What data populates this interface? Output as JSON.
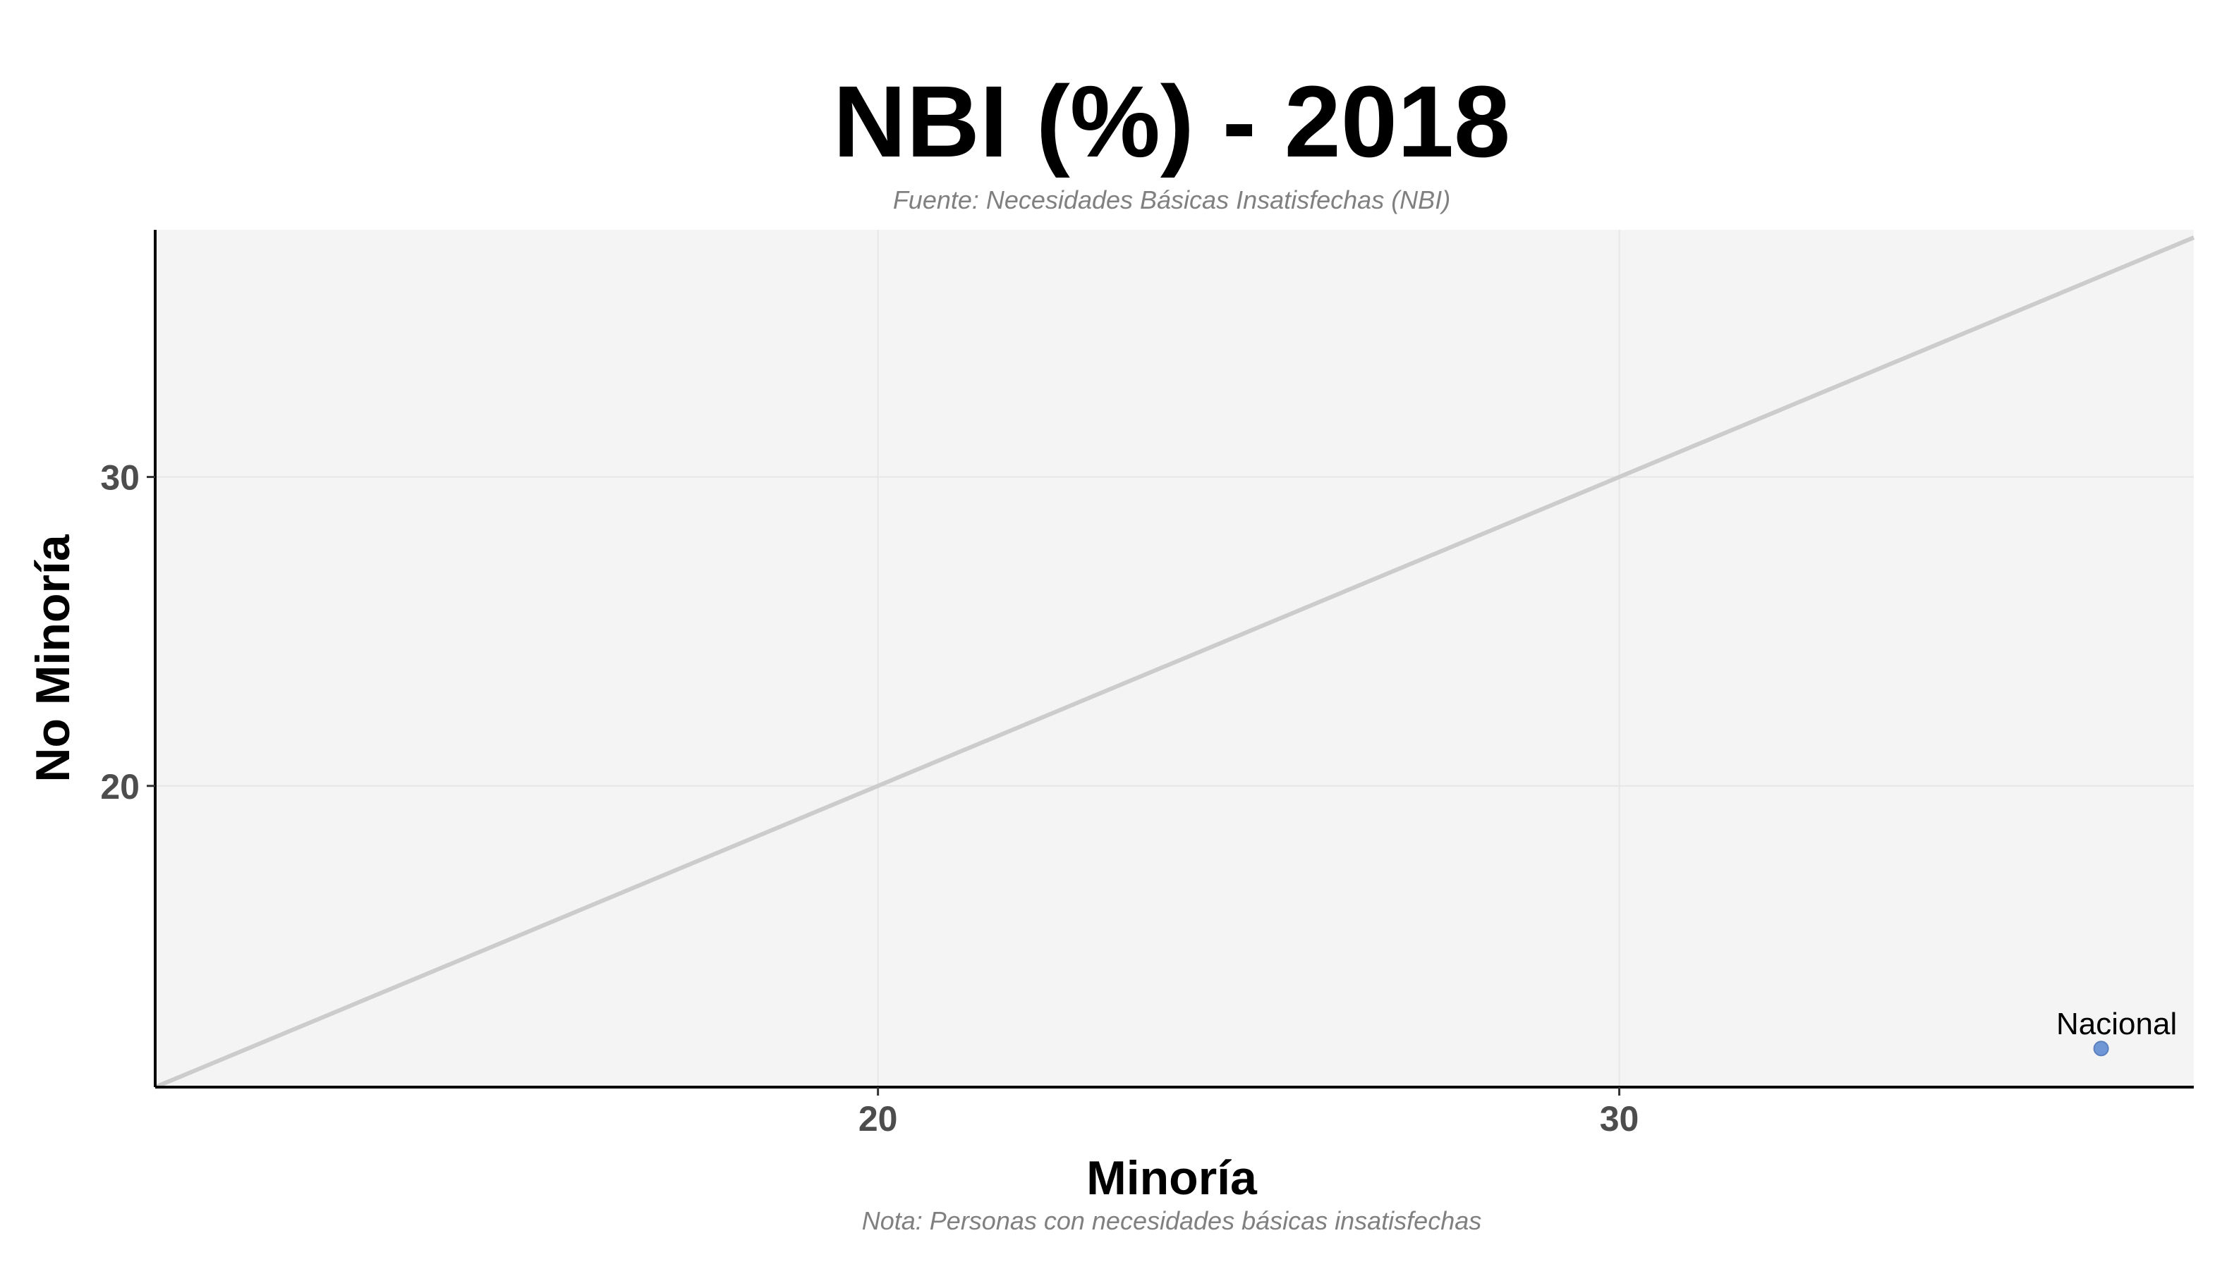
{
  "chart_data": {
    "type": "scatter",
    "title": "NBI (%) - 2018",
    "subtitle": "Fuente: Necesidades Básicas Insatisfechas (NBI)",
    "caption": "Nota: Personas con necesidades básicas insatisfechas",
    "xlabel": "Minoría",
    "ylabel": "No Minoría",
    "xlim": [
      10.25,
      37.75
    ],
    "ylim": [
      10.25,
      38.0
    ],
    "x_ticks": [
      20,
      30
    ],
    "y_ticks": [
      20,
      30
    ],
    "grid": true,
    "reference_line": "y = x",
    "points": [
      {
        "label": "Nacional",
        "x": 36.5,
        "y": 11.5
      }
    ],
    "colors": {
      "point": "#6f97d6",
      "reference_line": "#cccccc",
      "panel_background": "#f4f4f4",
      "gridline": "#e6e6e6"
    }
  }
}
